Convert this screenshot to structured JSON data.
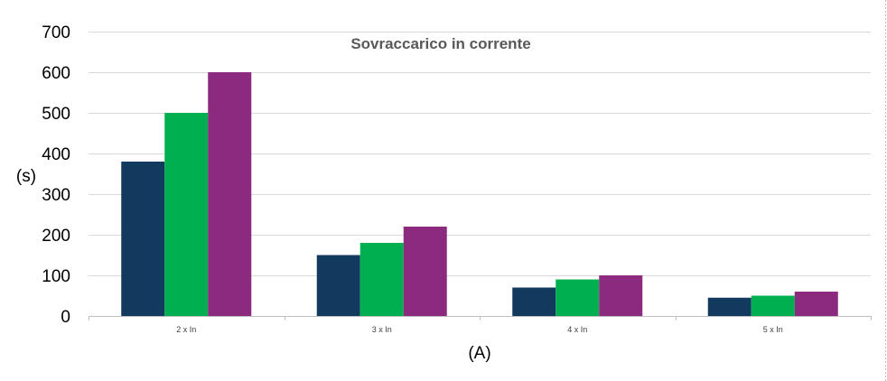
{
  "chart_data": {
    "type": "bar",
    "title": "Sovraccarico in corrente",
    "xlabel": "(A)",
    "ylabel": "(s)",
    "ylim": [
      0,
      700
    ],
    "yticks": [
      0,
      100,
      200,
      300,
      400,
      500,
      600,
      700
    ],
    "grid": true,
    "legend": "none",
    "categories": [
      "2 x In",
      "3 x In",
      "4 x In",
      "5 x In"
    ],
    "series": [
      {
        "color": "#12395e",
        "values": [
          380,
          150,
          70,
          45
        ]
      },
      {
        "color": "#00b050",
        "values": [
          500,
          180,
          90,
          50
        ]
      },
      {
        "color": "#8b2a7e",
        "values": [
          600,
          220,
          100,
          60
        ]
      }
    ]
  }
}
